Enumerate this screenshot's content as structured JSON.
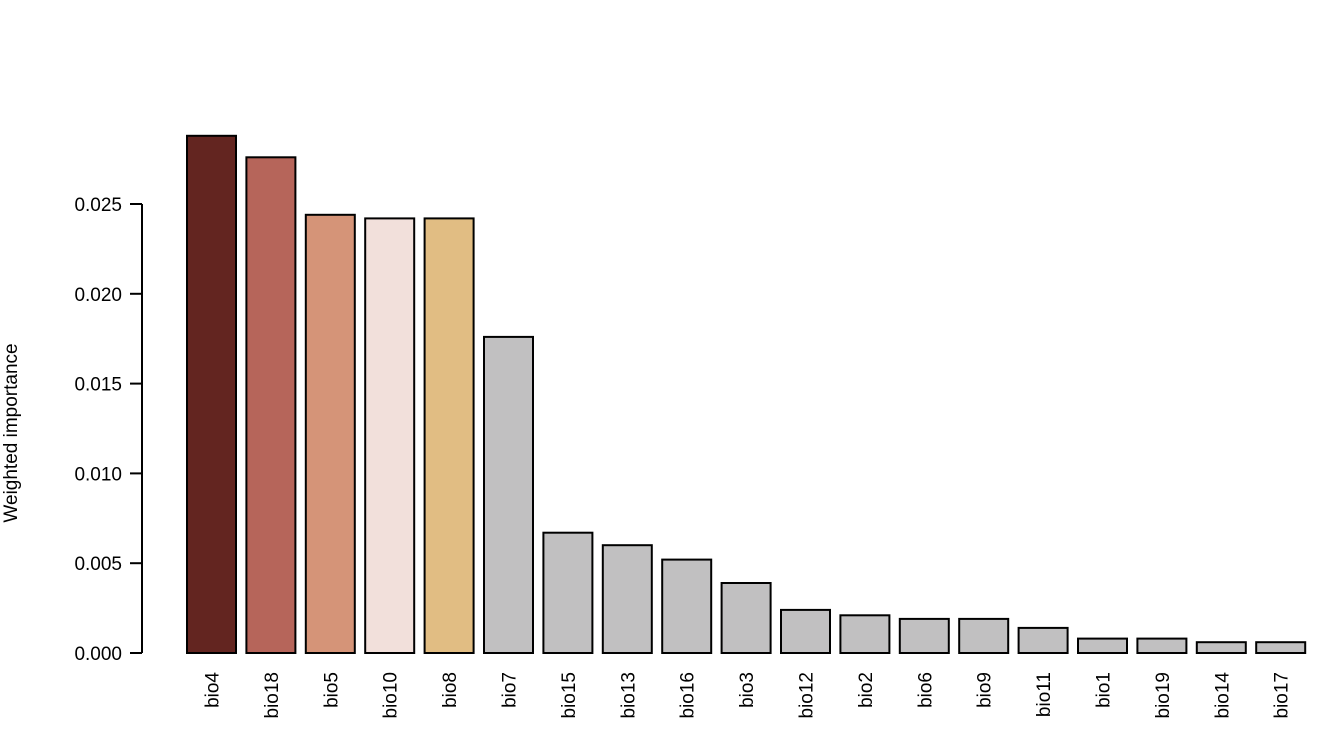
{
  "chart_data": {
    "type": "bar",
    "title": "",
    "xlabel": "",
    "ylabel": "Weighted importance",
    "ylim": [
      0,
      0.029
    ],
    "yticks": [
      "0.000",
      "0.005",
      "0.010",
      "0.015",
      "0.020",
      "0.025"
    ],
    "grid": false,
    "categories": [
      "bio4",
      "bio18",
      "bio5",
      "bio10",
      "bio8",
      "bio7",
      "bio15",
      "bio13",
      "bio16",
      "bio3",
      "bio12",
      "bio2",
      "bio6",
      "bio9",
      "bio11",
      "bio1",
      "bio19",
      "bio14",
      "bio17"
    ],
    "values": [
      0.0288,
      0.0276,
      0.0244,
      0.0242,
      0.0242,
      0.0176,
      0.0067,
      0.006,
      0.0052,
      0.0039,
      0.0024,
      0.0021,
      0.0019,
      0.0019,
      0.0014,
      0.0008,
      0.0008,
      0.0006,
      0.0006
    ],
    "colors": [
      "#632520",
      "#b6655a",
      "#d59478",
      "#f2e0db",
      "#e1bd83",
      "#c1c0c1",
      "#c1c0c1",
      "#c1c0c1",
      "#c1c0c1",
      "#c1c0c1",
      "#c1c0c1",
      "#c1c0c1",
      "#c1c0c1",
      "#c1c0c1",
      "#c1c0c1",
      "#c1c0c1",
      "#c1c0c1",
      "#c1c0c1",
      "#c1c0c1"
    ]
  }
}
